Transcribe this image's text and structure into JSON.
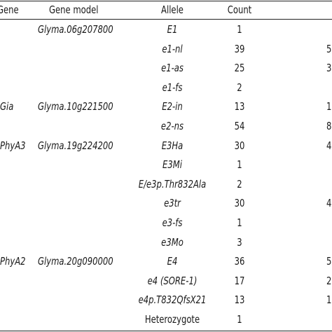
{
  "table": {
    "headers": {
      "gene": "Gene",
      "model": "Gene model",
      "allele": "Allele",
      "count": "Count"
    },
    "rows": [
      {
        "gene": "",
        "model": "Glyma.06g207800",
        "allele": "E1",
        "count": "1",
        "extra": ""
      },
      {
        "gene": "",
        "model": "",
        "allele": "e1-nl",
        "count": "39",
        "extra": "5"
      },
      {
        "gene": "",
        "model": "",
        "allele": "e1-as",
        "count": "25",
        "extra": "3"
      },
      {
        "gene": "",
        "model": "",
        "allele": "e1-fs",
        "count": "2",
        "extra": ""
      },
      {
        "gene": "Gia",
        "model": "Glyma.10g221500",
        "allele": "E2-in",
        "count": "13",
        "extra": "1"
      },
      {
        "gene": "",
        "model": "",
        "allele": "e2-ns",
        "count": "54",
        "extra": "8"
      },
      {
        "gene": "PhyA3",
        "model": "Glyma.19g224200",
        "allele": "E3Ha",
        "count": "30",
        "extra": "4"
      },
      {
        "gene": "",
        "model": "",
        "allele": "E3Mi",
        "count": "1",
        "extra": ""
      },
      {
        "gene": "",
        "model": "",
        "allele": "E/e3p.Thr832Ala",
        "count": "2",
        "extra": ""
      },
      {
        "gene": "",
        "model": "",
        "allele": "e3tr",
        "count": "30",
        "extra": "4"
      },
      {
        "gene": "",
        "model": "",
        "allele": "e3-fs",
        "count": "1",
        "extra": ""
      },
      {
        "gene": "",
        "model": "",
        "allele": "e3Mo",
        "count": "3",
        "extra": ""
      },
      {
        "gene": "PhyA2",
        "model": "Glyma.20g090000",
        "allele": "E4",
        "count": "36",
        "extra": "5"
      },
      {
        "gene": "",
        "model": "",
        "allele": "e4 (SORE-1)",
        "count": "17",
        "extra": "2"
      },
      {
        "gene": "",
        "model": "",
        "allele": "e4p.T832QfsX21",
        "count": "13",
        "extra": "1"
      },
      {
        "gene": "",
        "model": "",
        "allele": "Heterozygote",
        "count": "1",
        "extra": ""
      }
    ]
  }
}
